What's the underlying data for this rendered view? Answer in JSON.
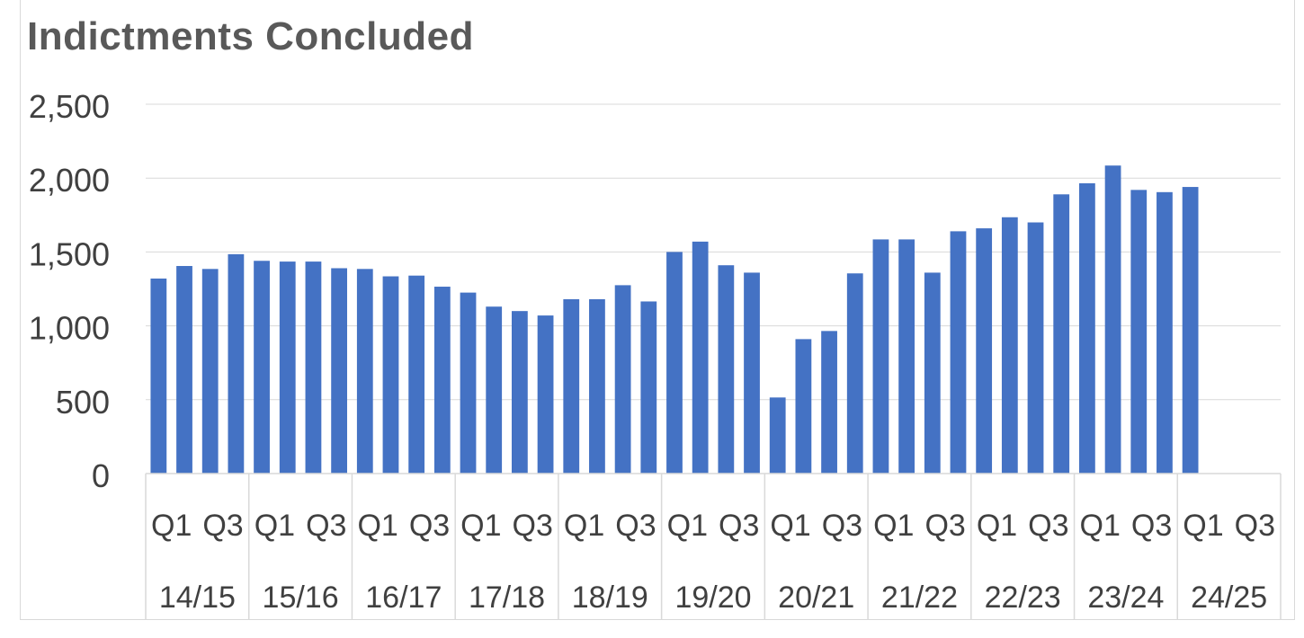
{
  "chart_data": {
    "type": "bar",
    "title": "Indictments Concluded",
    "xlabel": "",
    "ylabel": "",
    "ylim": [
      0,
      2500
    ],
    "yticks": [
      0,
      500,
      1000,
      1500,
      2000,
      2500
    ],
    "ytick_labels": [
      "0",
      "500",
      "1,000",
      "1,500",
      "2,000",
      "2,500"
    ],
    "grid": true,
    "legend": "none",
    "bar_color": "#4472c4",
    "categories": [
      "14/15 Q1",
      "14/15 Q2",
      "14/15 Q3",
      "14/15 Q4",
      "15/16 Q1",
      "15/16 Q2",
      "15/16 Q3",
      "15/16 Q4",
      "16/17 Q1",
      "16/17 Q2",
      "16/17 Q3",
      "16/17 Q4",
      "17/18 Q1",
      "17/18 Q2",
      "17/18 Q3",
      "17/18 Q4",
      "18/19 Q1",
      "18/19 Q2",
      "18/19 Q3",
      "18/19 Q4",
      "19/20 Q1",
      "19/20 Q2",
      "19/20 Q3",
      "19/20 Q4",
      "20/21 Q1",
      "20/21 Q2",
      "20/21 Q3",
      "20/21 Q4",
      "21/22 Q1",
      "21/22 Q2",
      "21/22 Q3",
      "21/22 Q4",
      "22/23 Q1",
      "22/23 Q2",
      "22/23 Q3",
      "22/23 Q4",
      "23/24 Q1",
      "23/24 Q2",
      "23/24 Q3",
      "23/24 Q4",
      "24/25 Q1",
      "24/25 Q2",
      "24/25 Q3",
      "24/25 Q4"
    ],
    "values": [
      1320,
      1405,
      1385,
      1485,
      1440,
      1435,
      1435,
      1390,
      1385,
      1335,
      1340,
      1265,
      1225,
      1130,
      1100,
      1070,
      1180,
      1180,
      1275,
      1165,
      1500,
      1570,
      1410,
      1360,
      515,
      910,
      965,
      1355,
      1585,
      1585,
      1360,
      1640,
      1660,
      1735,
      1700,
      1890,
      1965,
      2085,
      1920,
      1905,
      1940,
      null,
      null,
      null
    ],
    "quarter_labels": [
      "Q1",
      "Q3",
      "Q1",
      "Q3",
      "Q1",
      "Q3",
      "Q1",
      "Q3",
      "Q1",
      "Q3",
      "Q1",
      "Q3",
      "Q1",
      "Q3",
      "Q1",
      "Q3",
      "Q1",
      "Q3",
      "Q1",
      "Q3",
      "Q1",
      "Q3"
    ],
    "year_labels": [
      "14/15",
      "15/16",
      "16/17",
      "17/18",
      "18/19",
      "19/20",
      "20/21",
      "21/22",
      "22/23",
      "23/24",
      "24/25"
    ]
  }
}
